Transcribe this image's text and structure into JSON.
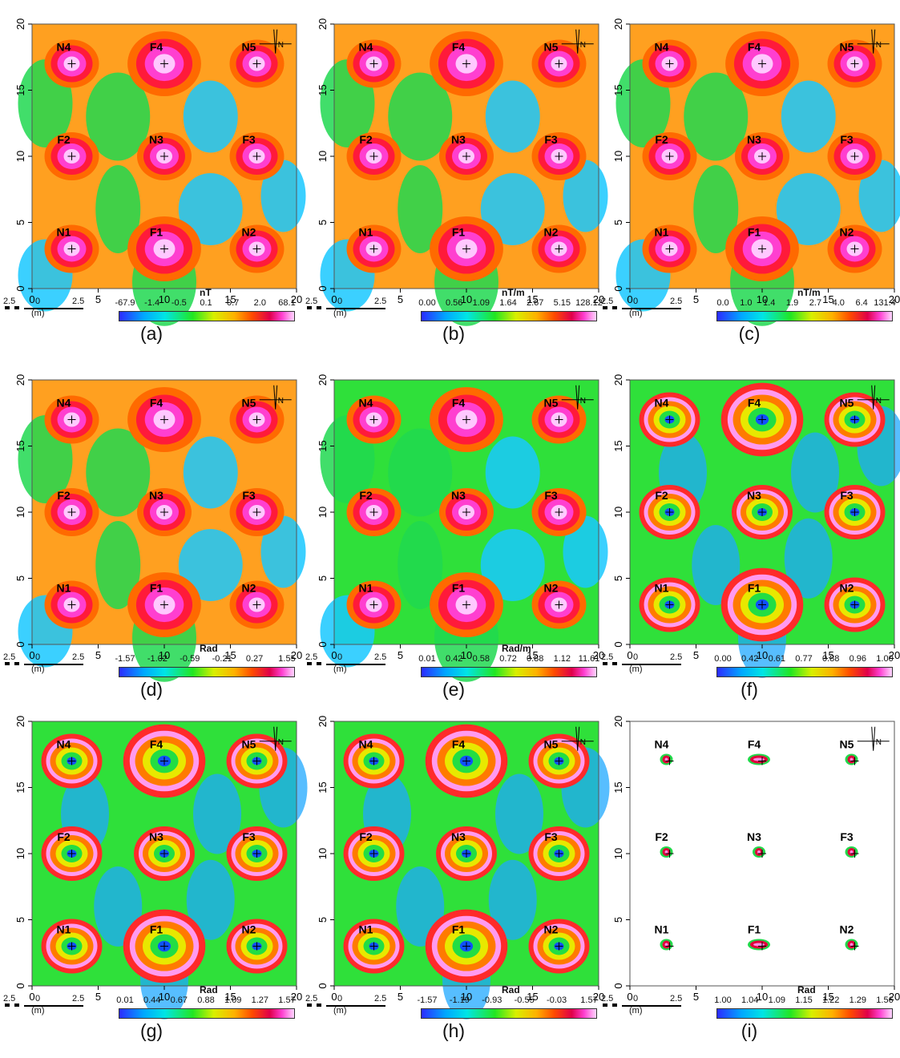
{
  "axis": {
    "ticks": [
      "0",
      "5",
      "10",
      "15",
      "20"
    ]
  },
  "points": [
    {
      "label": "N4",
      "x": 3,
      "y": 17
    },
    {
      "label": "F4",
      "x": 10,
      "y": 17
    },
    {
      "label": "N5",
      "x": 17,
      "y": 17
    },
    {
      "label": "F2",
      "x": 3,
      "y": 10
    },
    {
      "label": "N3",
      "x": 10,
      "y": 10
    },
    {
      "label": "F3",
      "x": 17,
      "y": 10
    },
    {
      "label": "N1",
      "x": 3,
      "y": 3
    },
    {
      "label": "F1",
      "x": 10,
      "y": 3
    },
    {
      "label": "N2",
      "x": 17,
      "y": 3
    }
  ],
  "scalebar": {
    "left": "2.5",
    "mid": "0",
    "right": "2.5",
    "unit": "(m)"
  },
  "north_label": "N",
  "panels": [
    {
      "id": "a",
      "caption": "(a)",
      "unit": "nT",
      "ticks": [
        "-67.9",
        "-1.4",
        "-0.5",
        "0.1",
        "0.7",
        "2.0",
        "68.1"
      ],
      "style": "blobs"
    },
    {
      "id": "b",
      "caption": "(b)",
      "unit": "nT/m",
      "ticks": [
        "0.00",
        "0.56",
        "1.09",
        "1.64",
        "2.67",
        "5.15",
        "128.12"
      ],
      "style": "blobs"
    },
    {
      "id": "c",
      "caption": "(c)",
      "unit": "nT/m",
      "ticks": [
        "0.0",
        "1.0",
        "1.4",
        "1.9",
        "2.7",
        "4.0",
        "6.4",
        "131.4"
      ],
      "style": "blobs"
    },
    {
      "id": "d",
      "caption": "(d)",
      "unit": "Rad",
      "ticks": [
        "-1.57",
        "-1.02",
        "-0.59",
        "-0.21",
        "0.27",
        "1.55"
      ],
      "style": "blobs"
    },
    {
      "id": "e",
      "caption": "(e)",
      "unit": "Rad/m",
      "ticks": [
        "0.01",
        "0.42",
        "0.58",
        "0.72",
        "0.88",
        "1.12",
        "11.61"
      ],
      "style": "noisy"
    },
    {
      "id": "f",
      "caption": "(f)",
      "unit": "",
      "ticks": [
        "0.00",
        "0.42",
        "0.61",
        "0.77",
        "0.88",
        "0.96",
        "1.00"
      ],
      "style": "rings"
    },
    {
      "id": "g",
      "caption": "(g)",
      "unit": "Rad",
      "ticks": [
        "0.01",
        "0.44",
        "0.67",
        "0.88",
        "1.09",
        "1.27",
        "1.57"
      ],
      "style": "rings"
    },
    {
      "id": "h",
      "caption": "(h)",
      "unit": "Rad",
      "ticks": [
        "-1.57",
        "-1.19",
        "-0.93",
        "-0.55",
        "-0.03",
        "1.57"
      ],
      "style": "rings"
    },
    {
      "id": "i",
      "caption": "(i)",
      "unit": "Rad",
      "ticks": [
        "1.00",
        "1.04",
        "1.09",
        "1.15",
        "1.22",
        "1.29",
        "1.56"
      ],
      "style": "sparse"
    }
  ],
  "colors": {
    "low": "#2b2bff",
    "mid": "#22e622",
    "high": "#e0004a",
    "peak": "#ff3fd0",
    "background_mid": "#ffb000"
  }
}
